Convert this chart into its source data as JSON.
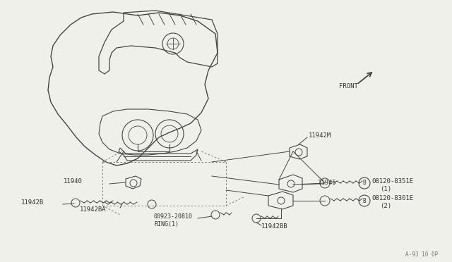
{
  "bg_color": "#f0f0eb",
  "line_color": "#444444",
  "text_color": "#333333",
  "watermark": "A-93 10 0P",
  "fig_w": 6.4,
  "fig_h": 3.72,
  "dpi": 100,
  "xlim": [
    0,
    640
  ],
  "ylim": [
    0,
    372
  ]
}
